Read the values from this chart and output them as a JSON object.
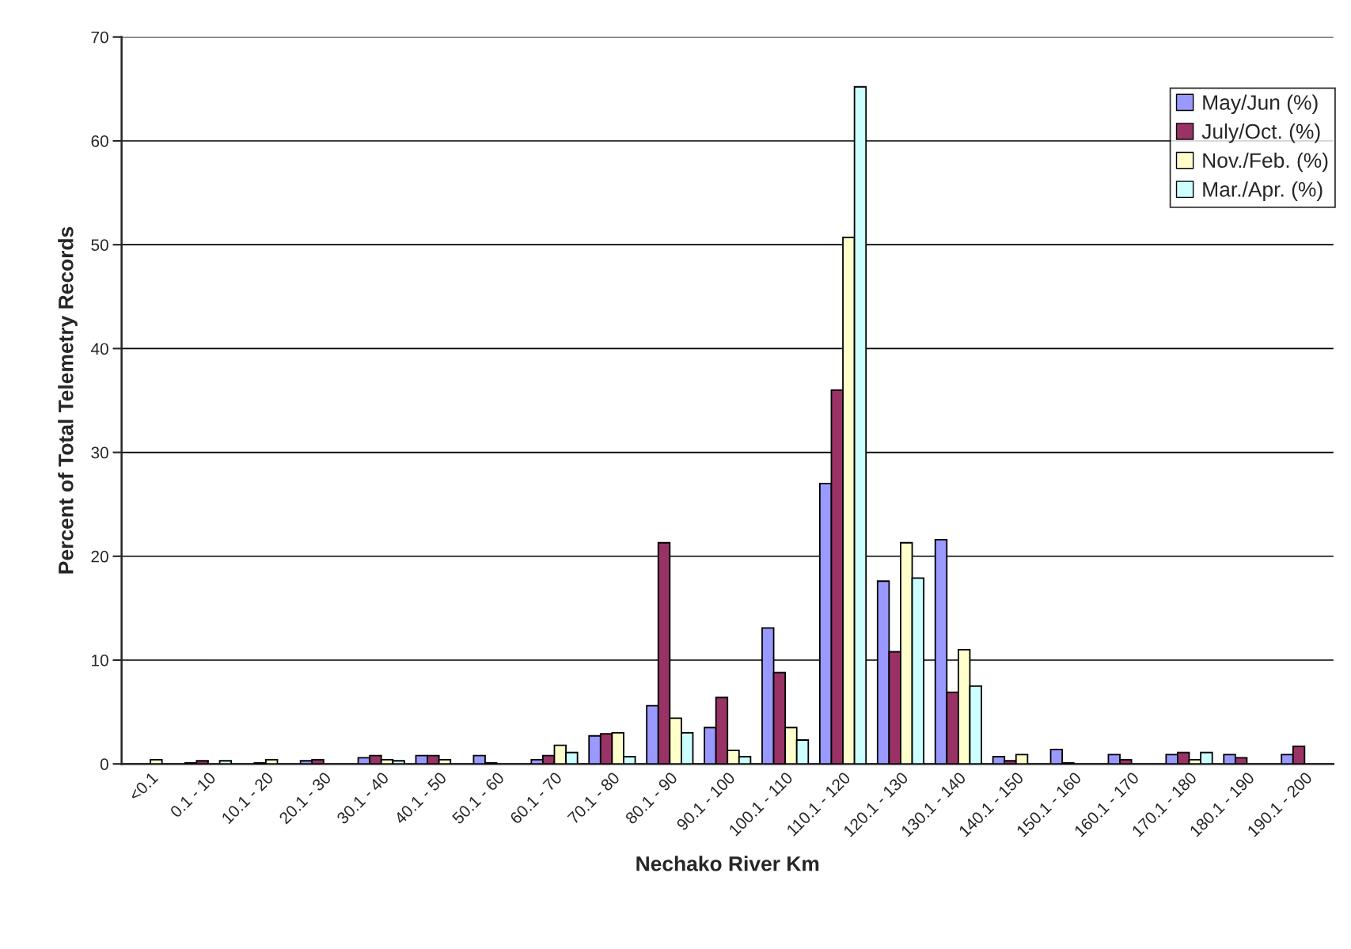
{
  "chart_data": {
    "type": "bar",
    "xlabel": "Nechako River Km",
    "ylabel": "Percent of Total Telemetry Records",
    "categories": [
      "<0.1",
      "0.1 - 10",
      "10.1 - 20",
      "20.1 - 30",
      "30.1 - 40",
      "40.1 - 50",
      "50.1 - 60",
      "60.1 - 70",
      "70.1 - 80",
      "80.1 - 90",
      "90.1 - 100",
      "100.1 - 110",
      "110.1 - 120",
      "120.1 - 130",
      "130.1 - 140",
      "140.1 - 150",
      "150.1 - 160",
      "160.1 - 170",
      "170.1 - 180",
      "180.1 - 190",
      "190.1 - 200"
    ],
    "series": [
      {
        "name": "May/Jun (%)",
        "color": "#9999ff",
        "values": [
          null,
          0.1,
          null,
          0.3,
          0.6,
          0.8,
          0.8,
          0.4,
          2.7,
          5.6,
          3.5,
          13.1,
          27.0,
          17.6,
          21.6,
          0.7,
          1.4,
          0.9,
          0.9,
          0.9,
          0.9
        ]
      },
      {
        "name": "July/Oct. (%)",
        "color": "#993366",
        "values": [
          null,
          0.3,
          0.1,
          0.4,
          0.8,
          0.8,
          0.1,
          0.8,
          2.9,
          21.3,
          6.4,
          8.8,
          36.0,
          10.8,
          6.9,
          0.3,
          0.1,
          0.4,
          1.1,
          0.6,
          1.7
        ]
      },
      {
        "name": "Nov./Feb. (%)",
        "color": "#ffffcc",
        "values": [
          0.4,
          null,
          0.4,
          null,
          0.4,
          0.4,
          null,
          1.8,
          3.0,
          4.4,
          1.3,
          3.5,
          50.7,
          21.3,
          11.0,
          0.9,
          null,
          null,
          0.4,
          null,
          null
        ]
      },
      {
        "name": "Mar./Apr. (%)",
        "color": "#ccffff",
        "values": [
          null,
          0.3,
          null,
          null,
          0.3,
          null,
          null,
          1.1,
          0.7,
          3.0,
          0.7,
          2.3,
          65.2,
          17.9,
          7.5,
          null,
          null,
          null,
          1.1,
          null,
          null
        ]
      }
    ],
    "ylim": [
      0,
      70
    ],
    "yticks": [
      0,
      10,
      20,
      30,
      40,
      50,
      60,
      70
    ],
    "grid": "y",
    "legend": "top right"
  }
}
